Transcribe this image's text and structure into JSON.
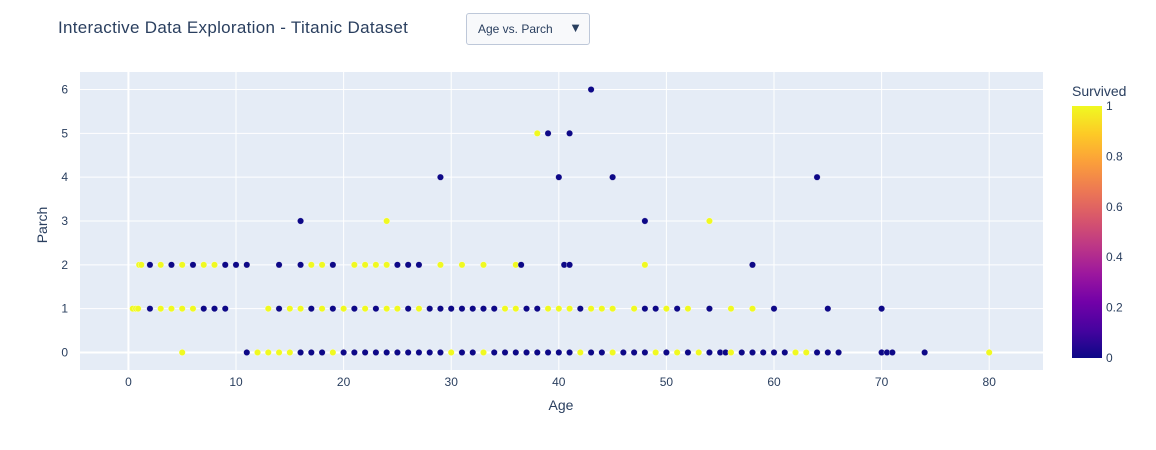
{
  "header": {
    "title": "Interactive Data Exploration - Titanic Dataset"
  },
  "dropdown": {
    "selected": "Age vs. Parch",
    "arrow_icon": "triangle-down-icon"
  },
  "colors": {
    "plot_bg": "#e5ecf6",
    "grid": "#ffffff",
    "survived_0": "#0d0887",
    "survived_1": "#f0f921"
  },
  "chart_data": {
    "type": "scatter",
    "xlabel": "Age",
    "ylabel": "Parch",
    "xlim": [
      -4.5,
      85
    ],
    "ylim": [
      -0.4,
      6.4
    ],
    "x_ticks": [
      0,
      10,
      20,
      30,
      40,
      50,
      60,
      70,
      80
    ],
    "y_ticks": [
      0,
      1,
      2,
      3,
      4,
      5,
      6
    ],
    "grid": true,
    "colorbar": {
      "title": "Survived",
      "range": [
        0,
        1
      ],
      "ticks": [
        "0",
        "0.2",
        "0.4",
        "0.6",
        "0.8",
        "1"
      ],
      "colorscale": [
        "#0d0887",
        "#46039f",
        "#7201a8",
        "#9c179e",
        "#bd3786",
        "#d8576b",
        "#ed7953",
        "#fb9f3a",
        "#fdca26",
        "#f0f921"
      ]
    },
    "points": [
      [
        0.4,
        1,
        1
      ],
      [
        0.7,
        1,
        1
      ],
      [
        0.9,
        1,
        1
      ],
      [
        1,
        2,
        1
      ],
      [
        1.2,
        2,
        1
      ],
      [
        2,
        1,
        0
      ],
      [
        2,
        2,
        0
      ],
      [
        3,
        1,
        1
      ],
      [
        3,
        2,
        1
      ],
      [
        3,
        1,
        1
      ],
      [
        4,
        1,
        1
      ],
      [
        4,
        2,
        0
      ],
      [
        5,
        1,
        1
      ],
      [
        5,
        2,
        1
      ],
      [
        5,
        0,
        1
      ],
      [
        6,
        1,
        1
      ],
      [
        6,
        2,
        0
      ],
      [
        7,
        1,
        0
      ],
      [
        7,
        2,
        1
      ],
      [
        8,
        1,
        0
      ],
      [
        8,
        2,
        1
      ],
      [
        9,
        1,
        0
      ],
      [
        9,
        2,
        0
      ],
      [
        9,
        2,
        0
      ],
      [
        10,
        2,
        0
      ],
      [
        11,
        2,
        1
      ],
      [
        11,
        2,
        0
      ],
      [
        11,
        0,
        0
      ],
      [
        12,
        0,
        1
      ],
      [
        13,
        0,
        1
      ],
      [
        13,
        1,
        1
      ],
      [
        14,
        0,
        1
      ],
      [
        14,
        1,
        0
      ],
      [
        14,
        2,
        0
      ],
      [
        15,
        0,
        1
      ],
      [
        15,
        1,
        1
      ],
      [
        16,
        0,
        0
      ],
      [
        16,
        1,
        1
      ],
      [
        16,
        2,
        0
      ],
      [
        16,
        3,
        0
      ],
      [
        17,
        0,
        0
      ],
      [
        17,
        1,
        0
      ],
      [
        17,
        2,
        1
      ],
      [
        18,
        0,
        0
      ],
      [
        18,
        1,
        1
      ],
      [
        18,
        2,
        1
      ],
      [
        19,
        0,
        1
      ],
      [
        19,
        1,
        0
      ],
      [
        19,
        2,
        0
      ],
      [
        20,
        0,
        0
      ],
      [
        20,
        1,
        1
      ],
      [
        21,
        0,
        0
      ],
      [
        21,
        1,
        0
      ],
      [
        21,
        2,
        1
      ],
      [
        22,
        0,
        0
      ],
      [
        22,
        1,
        1
      ],
      [
        22,
        2,
        1
      ],
      [
        23,
        0,
        0
      ],
      [
        23,
        1,
        0
      ],
      [
        23,
        2,
        1
      ],
      [
        24,
        0,
        0
      ],
      [
        24,
        1,
        1
      ],
      [
        24,
        2,
        1
      ],
      [
        24,
        3,
        1
      ],
      [
        25,
        0,
        0
      ],
      [
        25,
        1,
        1
      ],
      [
        25,
        2,
        0
      ],
      [
        26,
        0,
        0
      ],
      [
        26,
        1,
        0
      ],
      [
        26,
        2,
        0
      ],
      [
        27,
        0,
        0
      ],
      [
        27,
        1,
        1
      ],
      [
        27,
        2,
        0
      ],
      [
        28,
        0,
        0
      ],
      [
        28,
        1,
        0
      ],
      [
        29,
        0,
        0
      ],
      [
        29,
        1,
        0
      ],
      [
        29,
        2,
        1
      ],
      [
        29,
        4,
        0
      ],
      [
        30,
        0,
        1
      ],
      [
        30,
        1,
        0
      ],
      [
        31,
        0,
        0
      ],
      [
        31,
        1,
        0
      ],
      [
        31,
        2,
        1
      ],
      [
        32,
        0,
        0
      ],
      [
        32,
        1,
        0
      ],
      [
        33,
        0,
        1
      ],
      [
        33,
        1,
        0
      ],
      [
        33,
        2,
        1
      ],
      [
        34,
        0,
        0
      ],
      [
        34,
        1,
        0
      ],
      [
        35,
        0,
        0
      ],
      [
        35,
        1,
        1
      ],
      [
        36,
        0,
        0
      ],
      [
        36,
        1,
        1
      ],
      [
        36,
        2,
        1
      ],
      [
        36.5,
        2,
        0
      ],
      [
        37,
        0,
        0
      ],
      [
        37,
        1,
        0
      ],
      [
        38,
        0,
        0
      ],
      [
        38,
        1,
        0
      ],
      [
        38,
        5,
        1
      ],
      [
        39,
        0,
        0
      ],
      [
        39,
        1,
        1
      ],
      [
        39,
        5,
        0
      ],
      [
        40,
        0,
        0
      ],
      [
        40,
        1,
        1
      ],
      [
        40,
        4,
        0
      ],
      [
        40.5,
        2,
        0
      ],
      [
        41,
        0,
        0
      ],
      [
        41,
        1,
        1
      ],
      [
        41,
        2,
        0
      ],
      [
        41,
        5,
        0
      ],
      [
        42,
        0,
        1
      ],
      [
        42,
        1,
        0
      ],
      [
        43,
        0,
        0
      ],
      [
        43,
        1,
        1
      ],
      [
        43,
        6,
        0
      ],
      [
        44,
        0,
        0
      ],
      [
        44,
        1,
        1
      ],
      [
        45,
        0,
        1
      ],
      [
        45,
        1,
        1
      ],
      [
        45,
        4,
        0
      ],
      [
        46,
        0,
        0
      ],
      [
        47,
        0,
        0
      ],
      [
        47,
        1,
        1
      ],
      [
        48,
        0,
        0
      ],
      [
        48,
        1,
        0
      ],
      [
        48,
        2,
        1
      ],
      [
        48,
        3,
        0
      ],
      [
        49,
        0,
        1
      ],
      [
        49,
        1,
        0
      ],
      [
        50,
        0,
        0
      ],
      [
        50,
        1,
        1
      ],
      [
        51,
        0,
        1
      ],
      [
        51,
        1,
        0
      ],
      [
        52,
        0,
        0
      ],
      [
        52,
        1,
        1
      ],
      [
        53,
        0,
        1
      ],
      [
        54,
        0,
        0
      ],
      [
        54,
        1,
        0
      ],
      [
        54,
        3,
        1
      ],
      [
        55,
        0,
        0
      ],
      [
        55.5,
        0,
        0
      ],
      [
        56,
        0,
        1
      ],
      [
        56,
        1,
        1
      ],
      [
        57,
        0,
        0
      ],
      [
        58,
        0,
        0
      ],
      [
        58,
        1,
        1
      ],
      [
        58,
        2,
        0
      ],
      [
        59,
        0,
        0
      ],
      [
        60,
        0,
        0
      ],
      [
        60,
        1,
        0
      ],
      [
        61,
        0,
        0
      ],
      [
        62,
        0,
        1
      ],
      [
        63,
        0,
        1
      ],
      [
        64,
        0,
        0
      ],
      [
        64,
        4,
        0
      ],
      [
        65,
        0,
        0
      ],
      [
        65,
        1,
        0
      ],
      [
        66,
        0,
        0
      ],
      [
        70,
        0,
        0
      ],
      [
        70,
        1,
        0
      ],
      [
        70.5,
        0,
        0
      ],
      [
        71,
        0,
        0
      ],
      [
        74,
        0,
        0
      ],
      [
        80,
        0,
        1
      ]
    ]
  }
}
